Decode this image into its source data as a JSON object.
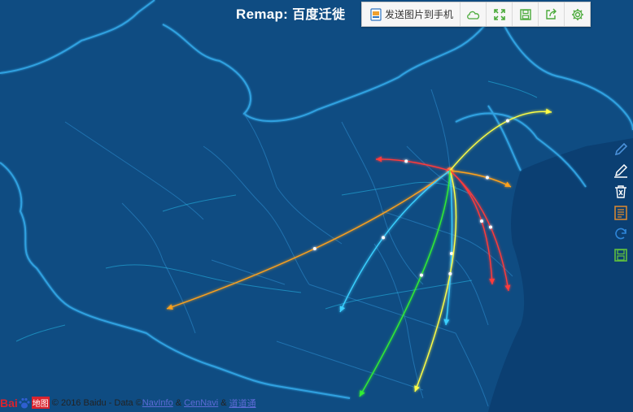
{
  "title": {
    "prefix": "Remap:",
    "text": "百度迁徙"
  },
  "toolbar": {
    "send_label": "发送图片到手机",
    "items": [
      {
        "name": "send-to-phone-button",
        "icon": "phone-image-icon"
      },
      {
        "name": "cloud-button",
        "icon": "cloud-icon"
      },
      {
        "name": "fullscreen-button",
        "icon": "expand-icon"
      },
      {
        "name": "save-button",
        "icon": "save-icon"
      },
      {
        "name": "share-button",
        "icon": "share-icon"
      },
      {
        "name": "settings-button",
        "icon": "gear-icon"
      }
    ]
  },
  "side_tools": [
    {
      "name": "pen-tool-button",
      "icon": "pen-icon",
      "color": "#4a90d9"
    },
    {
      "name": "pencil-tool-button",
      "icon": "pencil-icon",
      "color": "#ffffff"
    },
    {
      "name": "eraser-tool-button",
      "icon": "trash-icon",
      "color": "#ffffff"
    },
    {
      "name": "notes-tool-button",
      "icon": "notes-icon",
      "color": "#e08a2e"
    },
    {
      "name": "refresh-tool-button",
      "icon": "refresh-icon",
      "color": "#2e86d9"
    },
    {
      "name": "save-tool-button",
      "icon": "save-icon",
      "color": "#5fbf3f"
    }
  ],
  "footer": {
    "logo_text": "Bai",
    "logo_text2": "地图",
    "copyright": "© 2016 Baidu - Data ©",
    "links": [
      "NavInfo",
      "CenNavi",
      "道道通"
    ],
    "amp": "&"
  },
  "map": {
    "background": "#0e4a80",
    "border_color": "#2fa0e0",
    "origin": "Beijing",
    "flows": [
      {
        "to": "northeast",
        "color": "#ffff44"
      },
      {
        "to": "east",
        "color": "#ffa21a"
      },
      {
        "to": "west",
        "color": "#ff3a3a"
      },
      {
        "to": "southeast",
        "color": "#ff3a3a"
      },
      {
        "to": "south-east coast",
        "color": "#ff3a3a"
      },
      {
        "to": "far west",
        "color": "#ffa21a"
      },
      {
        "to": "southwest",
        "color": "#3ad0ff"
      },
      {
        "to": "south",
        "color": "#3ad0ff"
      },
      {
        "to": "south",
        "color": "#ffff44"
      },
      {
        "to": "far south",
        "color": "#33ee33"
      }
    ]
  }
}
